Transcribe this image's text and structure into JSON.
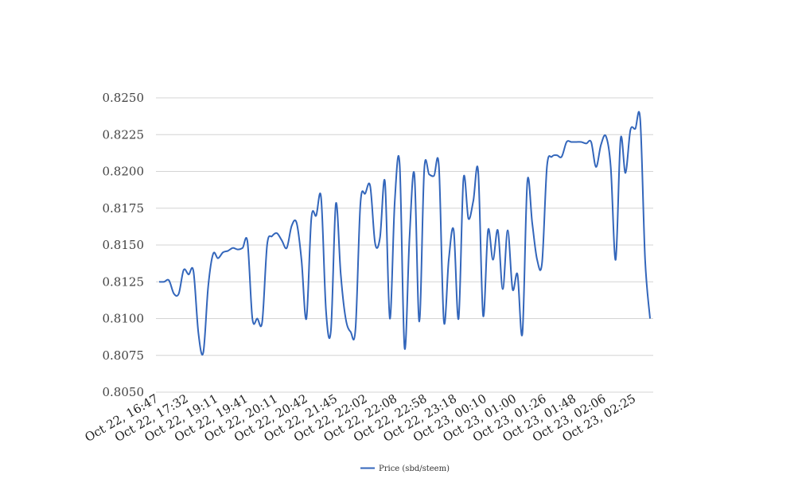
{
  "chart_data": {
    "type": "line",
    "title": "",
    "xlabel": "",
    "ylabel": "",
    "ylim": [
      0.805,
      0.825
    ],
    "yticks": [
      "0.8050",
      "0.8075",
      "0.8100",
      "0.8125",
      "0.8150",
      "0.8175",
      "0.8200",
      "0.8225",
      "0.8250"
    ],
    "xtick_labels": [
      "Oct 22, 16:47",
      "Oct 22, 17:32",
      "Oct 22, 19:11",
      "Oct 22, 19:41",
      "Oct 22, 20:11",
      "Oct 22, 20:42",
      "Oct 22, 21:45",
      "Oct 22, 22:02",
      "Oct 22, 22:08",
      "Oct 22, 22:58",
      "Oct 22, 23:18",
      "Oct 23, 00:10",
      "Oct 23, 01:00",
      "Oct 23, 01:26",
      "Oct 23, 01:48",
      "Oct 23, 02:06",
      "Oct 23, 02:25"
    ],
    "grid": true,
    "legend_position": "bottom-center",
    "colors": {
      "line": "#3366bb",
      "grid": "#d4d4d4"
    },
    "series": [
      {
        "name": "Price (sbd/steem)",
        "values": [
          0.8125,
          0.8125,
          0.8126,
          0.8117,
          0.8117,
          0.8133,
          0.813,
          0.8132,
          0.809,
          0.8077,
          0.8122,
          0.8144,
          0.8141,
          0.8145,
          0.8146,
          0.8148,
          0.8147,
          0.8148,
          0.8152,
          0.81,
          0.81,
          0.8098,
          0.815,
          0.8156,
          0.8158,
          0.8153,
          0.8148,
          0.8163,
          0.8165,
          0.814,
          0.81,
          0.8168,
          0.817,
          0.8182,
          0.8105,
          0.8092,
          0.8178,
          0.813,
          0.81,
          0.8091,
          0.8093,
          0.8178,
          0.8185,
          0.819,
          0.8151,
          0.8155,
          0.8193,
          0.81,
          0.818,
          0.8205,
          0.808,
          0.8155,
          0.8198,
          0.8098,
          0.8201,
          0.8198,
          0.8197,
          0.8203,
          0.8098,
          0.814,
          0.816,
          0.81,
          0.8195,
          0.8168,
          0.818,
          0.82,
          0.8102,
          0.816,
          0.814,
          0.816,
          0.812,
          0.816,
          0.812,
          0.813,
          0.809,
          0.8193,
          0.8165,
          0.814,
          0.8138,
          0.8203,
          0.821,
          0.8211,
          0.821,
          0.822,
          0.822,
          0.822,
          0.822,
          0.8219,
          0.822,
          0.8203,
          0.8218,
          0.8224,
          0.8203,
          0.814,
          0.8222,
          0.8199,
          0.8228,
          0.8229,
          0.8235,
          0.814,
          0.81
        ]
      }
    ]
  }
}
